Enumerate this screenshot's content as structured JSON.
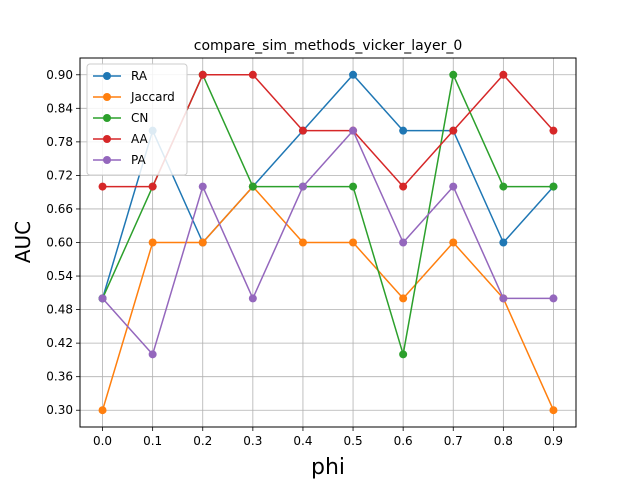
{
  "chart_data": {
    "type": "line",
    "title": "compare_sim_methods_vicker_layer_0",
    "xlabel": "phi",
    "ylabel": "AUC",
    "x": [
      0.0,
      0.1,
      0.2,
      0.3,
      0.4,
      0.5,
      0.6,
      0.7,
      0.8,
      0.9
    ],
    "x_tick_labels": [
      "0.0",
      "0.1",
      "0.2",
      "0.3",
      "0.4",
      "0.5",
      "0.6",
      "0.7",
      "0.8",
      "0.9"
    ],
    "y_ticks": [
      0.3,
      0.36,
      0.42,
      0.48,
      0.54,
      0.6,
      0.66,
      0.72,
      0.78,
      0.84,
      0.9
    ],
    "y_tick_labels": [
      "0.30",
      "0.36",
      "0.42",
      "0.48",
      "0.54",
      "0.60",
      "0.66",
      "0.72",
      "0.78",
      "0.84",
      "0.90"
    ],
    "xlim": [
      -0.045,
      0.945
    ],
    "ylim": [
      0.27,
      0.93
    ],
    "grid": true,
    "legend_position": "top-left",
    "series": [
      {
        "name": "RA",
        "color": "#1f77b4",
        "values": [
          0.5,
          0.8,
          0.6,
          0.7,
          0.8,
          0.9,
          0.8,
          0.8,
          0.6,
          0.7
        ]
      },
      {
        "name": "Jaccard",
        "color": "#ff7f0e",
        "values": [
          0.3,
          0.6,
          0.6,
          0.7,
          0.6,
          0.6,
          0.5,
          0.6,
          0.5,
          0.3
        ]
      },
      {
        "name": "CN",
        "color": "#2ca02c",
        "values": [
          0.5,
          0.7,
          0.9,
          0.7,
          0.7,
          0.7,
          0.4,
          0.9,
          0.7,
          0.7
        ]
      },
      {
        "name": "AA",
        "color": "#d62728",
        "values": [
          0.7,
          0.7,
          0.9,
          0.9,
          0.8,
          0.8,
          0.7,
          0.8,
          0.9,
          0.8
        ]
      },
      {
        "name": "PA",
        "color": "#9467bd",
        "values": [
          0.5,
          0.4,
          0.7,
          0.5,
          0.7,
          0.8,
          0.6,
          0.7,
          0.5,
          0.5
        ]
      }
    ]
  }
}
